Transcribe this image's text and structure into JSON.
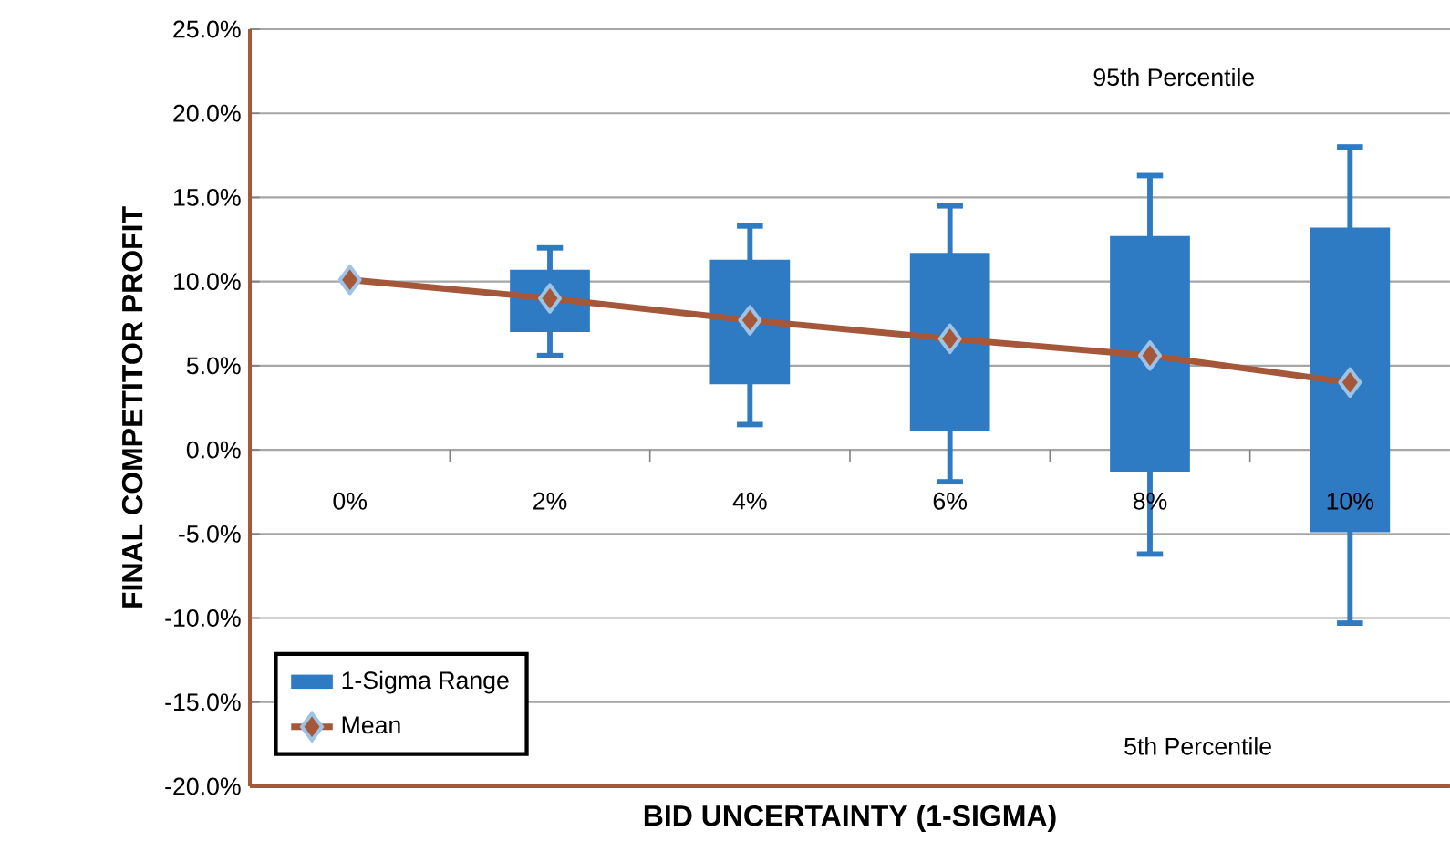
{
  "chart_data": {
    "type": "box",
    "xlabel": "BID UNCERTAINTY (1-SIGMA)",
    "ylabel": "FINAL COMPETITOR PROFIT",
    "categories": [
      "0%",
      "2%",
      "4%",
      "6%",
      "8%",
      "10%"
    ],
    "ylim": [
      -20,
      25
    ],
    "yticks": [
      {
        "value": -20,
        "label": "-20.0%"
      },
      {
        "value": -15,
        "label": "-15.0%"
      },
      {
        "value": -10,
        "label": "-10.0%"
      },
      {
        "value": -5,
        "label": "-5.0%"
      },
      {
        "value": 0,
        "label": "0.0%"
      },
      {
        "value": 5,
        "label": "5.0%"
      },
      {
        "value": 10,
        "label": "10.0%"
      },
      {
        "value": 15,
        "label": "15.0%"
      },
      {
        "value": 20,
        "label": "20.0%"
      },
      {
        "value": 25,
        "label": "25.0%"
      }
    ],
    "grid": "y",
    "legend": "bottom left",
    "annotations": [
      "95th Percentile",
      "5th Percentile"
    ],
    "series": [
      {
        "name": "1-Sigma Range",
        "color": "#2e7bc4",
        "boxes": [
          null,
          {
            "low": 5.6,
            "q1": 7.0,
            "q3": 10.7,
            "high": 12.0
          },
          {
            "low": 1.5,
            "q1": 3.9,
            "q3": 11.3,
            "high": 13.3
          },
          {
            "low": -1.9,
            "q1": 1.1,
            "q3": 11.7,
            "high": 14.5
          },
          {
            "low": -6.2,
            "q1": -1.3,
            "q3": 12.7,
            "high": 16.3
          },
          {
            "low": -10.3,
            "q1": -4.9,
            "q3": 13.2,
            "high": 18.0
          }
        ]
      },
      {
        "name": "Mean",
        "type": "line",
        "color": "#a5573a",
        "marker": "diamond",
        "values": [
          10.1,
          9.0,
          7.7,
          6.6,
          5.6,
          4.0
        ]
      }
    ]
  }
}
